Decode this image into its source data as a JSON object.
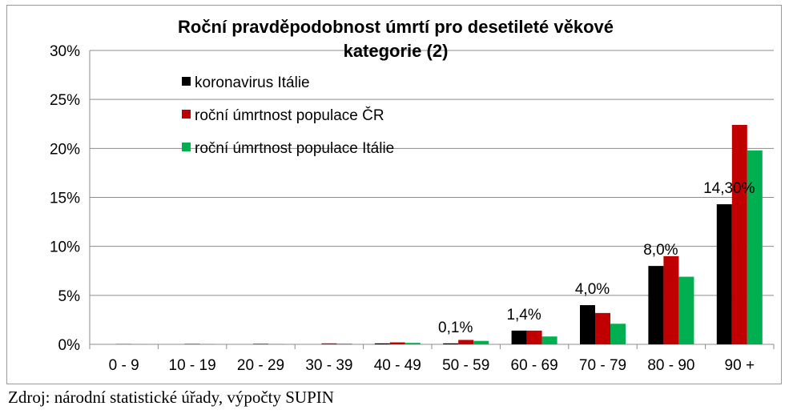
{
  "chart_data": {
    "type": "bar",
    "title_lines": [
      "Roční pravděpodobnost úmrtí pro desetileté věkové",
      "kategorie (2)"
    ],
    "categories": [
      "0 - 9",
      "10 - 19",
      "20 - 29",
      "30 - 39",
      "40 - 49",
      "50 - 59",
      "60 - 69",
      "70 - 79",
      "80 - 90",
      "90 +"
    ],
    "series": [
      {
        "name": "koronavirus Itálie",
        "color": "#000000",
        "values": [
          0,
          0,
          0,
          0,
          0.1,
          0.1,
          1.4,
          4.0,
          8.0,
          14.3
        ]
      },
      {
        "name": "roční úmrtnost populace ČR",
        "color": "#c00000",
        "values": [
          0.03,
          0.05,
          0.06,
          0.1,
          0.2,
          0.45,
          1.4,
          3.2,
          9.0,
          22.4
        ]
      },
      {
        "name": "roční úmrtnost populace Itálie",
        "color": "#00b050",
        "values": [
          0.02,
          0.03,
          0.04,
          0.07,
          0.15,
          0.35,
          0.8,
          2.1,
          6.9,
          19.8
        ]
      }
    ],
    "data_labels": [
      {
        "category_index": 5,
        "text": "0,1%"
      },
      {
        "category_index": 6,
        "text": "1,4%"
      },
      {
        "category_index": 7,
        "text": "4,0%"
      },
      {
        "category_index": 8,
        "text": "8,0%"
      },
      {
        "category_index": 9,
        "text": "14,30%"
      }
    ],
    "y_ticks": [
      "0%",
      "5%",
      "10%",
      "15%",
      "20%",
      "25%",
      "30%"
    ],
    "ylim": [
      0,
      30
    ],
    "grid": true,
    "legend_position": "top-left inside plot"
  },
  "source_text": "Zdroj: národní statistické úřady, výpočty SUPIN"
}
